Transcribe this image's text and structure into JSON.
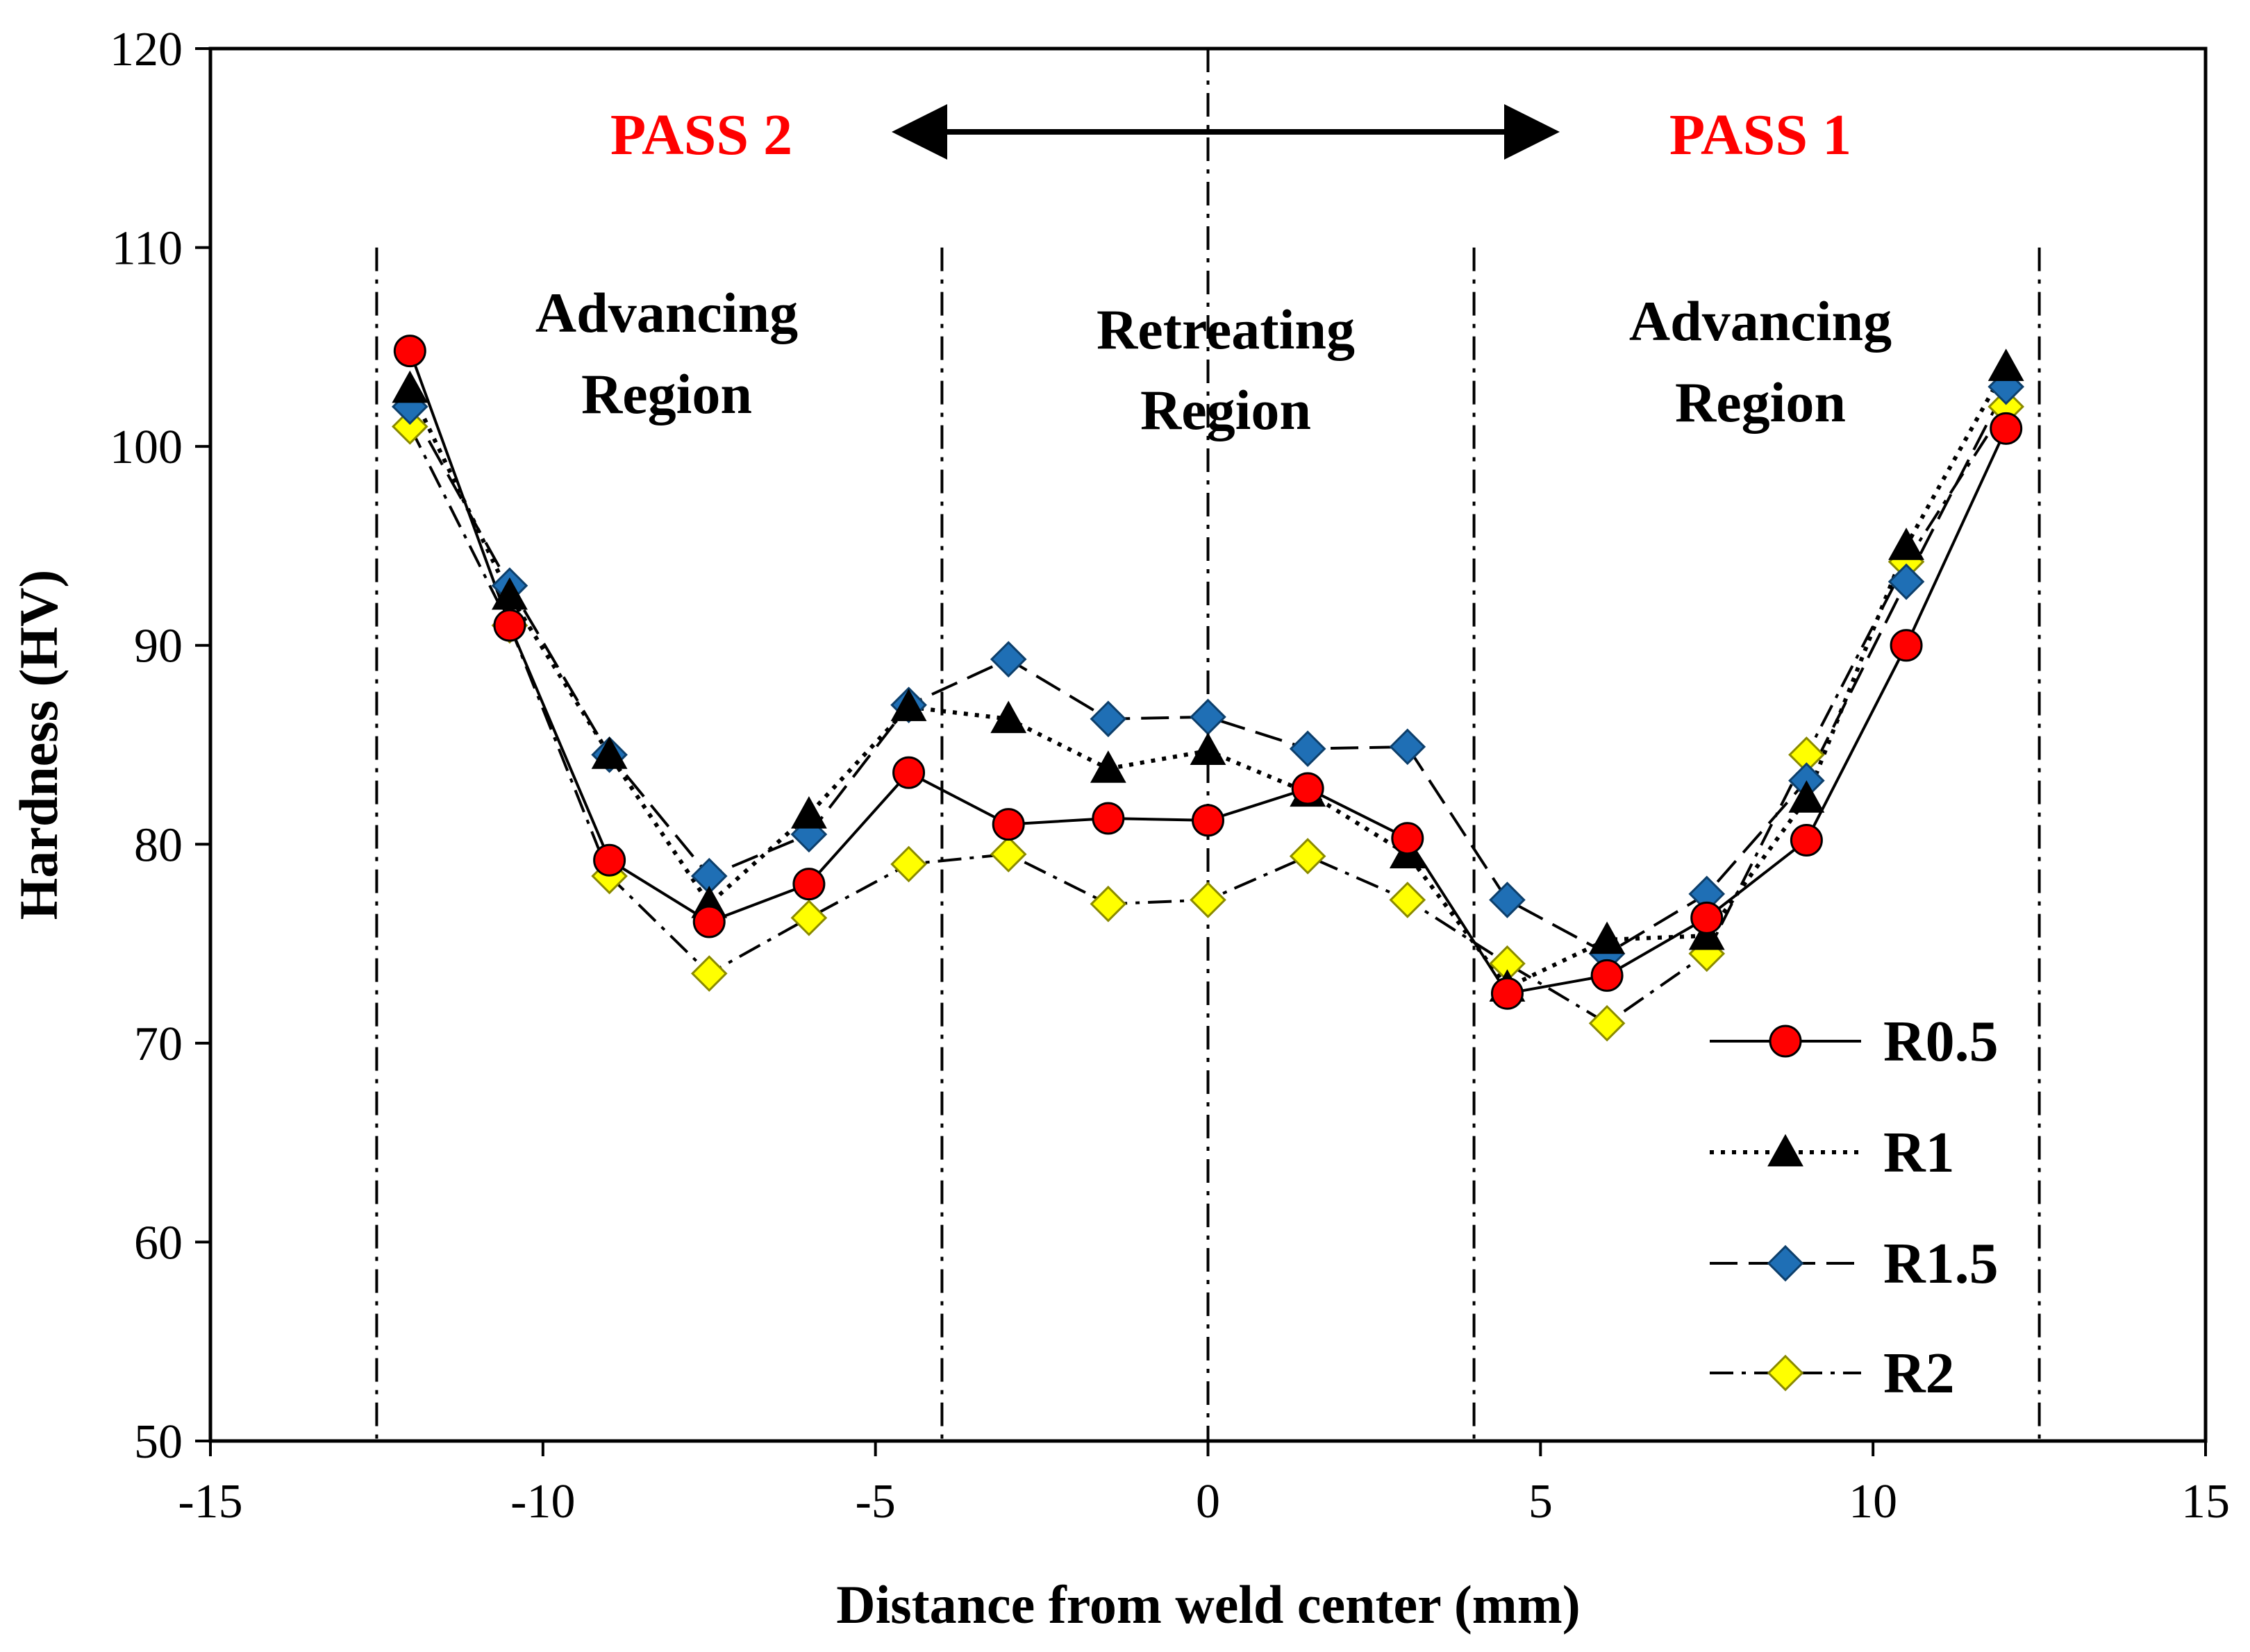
{
  "chart_data": {
    "type": "line",
    "title": "",
    "xlabel": "Distance from weld center (mm)",
    "ylabel": "Hardness (HV)",
    "xlim": [
      -15,
      15
    ],
    "ylim": [
      50,
      120
    ],
    "xticks": [
      -15,
      -10,
      -5,
      0,
      5,
      10,
      15
    ],
    "yticks": [
      50,
      60,
      70,
      80,
      90,
      100,
      110,
      120
    ],
    "xtick_labels": [
      "-15",
      "-10",
      "-5",
      "0",
      "5",
      "10",
      "15"
    ],
    "ytick_labels": [
      "50",
      "60",
      "70",
      "80",
      "90",
      "100",
      "110",
      "120"
    ],
    "legend_position": "bottom-right",
    "x": [
      -12,
      -10.5,
      -9,
      -7.5,
      -6,
      -4.5,
      -3,
      -1.5,
      0,
      1.5,
      3,
      4.5,
      6,
      7.5,
      9,
      10.5,
      12
    ],
    "series": [
      {
        "name": "R0.5",
        "line": "solid",
        "marker": "circle",
        "color": "#ff0000",
        "values": [
          104.8,
          91,
          79.2,
          76.1,
          78,
          83.6,
          81,
          81.3,
          81.2,
          82.8,
          80.3,
          72.5,
          73.4,
          76.3,
          80.2,
          90,
          100.9
        ]
      },
      {
        "name": "R1",
        "line": "dotted",
        "marker": "triangle",
        "color": "#000000",
        "values": [
          102.9,
          92.5,
          84.5,
          77,
          81.5,
          86.9,
          86.3,
          83.8,
          84.7,
          82.6,
          79.5,
          72.8,
          75.2,
          75.4,
          82.3,
          95,
          104
        ]
      },
      {
        "name": "R1.5",
        "line": "dashed",
        "marker": "diamond",
        "color": "#1f6fb5",
        "values": [
          102,
          93,
          84.5,
          78.4,
          80.5,
          87,
          89.3,
          86.3,
          86.4,
          84.8,
          84.9,
          77.2,
          74.5,
          77.5,
          83.2,
          93.2,
          103
        ]
      },
      {
        "name": "R2",
        "line": "dashdot",
        "marker": "diamond",
        "color": "#ffff00",
        "values": [
          101,
          91,
          78.4,
          73.5,
          76.3,
          79,
          79.5,
          77,
          77.2,
          79.4,
          77.2,
          74,
          71,
          74.5,
          84.5,
          94.2,
          102
        ]
      }
    ],
    "vertical_lines": [
      -12.5,
      -4,
      0,
      4,
      12.5
    ],
    "annotations": {
      "pass_left": "PASS 2",
      "pass_right": "PASS 1",
      "arrow": "double-headed",
      "regions": [
        {
          "line1": "Advancing",
          "line2": "Region"
        },
        {
          "line1": "Retreating",
          "line2": "Region"
        },
        {
          "line1": "Advancing",
          "line2": "Region"
        }
      ]
    }
  }
}
